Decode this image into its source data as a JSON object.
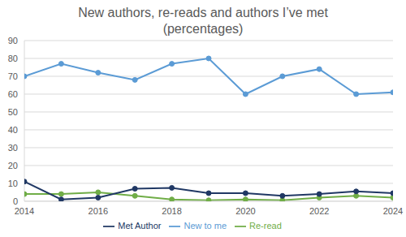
{
  "chart_data": {
    "type": "line",
    "title": "New authors, re-reads and authors I’ve met (percentages)",
    "x": [
      2014,
      2015,
      2016,
      2017,
      2018,
      2019,
      2020,
      2021,
      2022,
      2023,
      2024
    ],
    "series": [
      {
        "name": "New to me",
        "color": "#5b9bd5",
        "marker": "circle",
        "values": [
          70,
          77,
          72,
          68,
          77,
          80,
          60,
          70,
          74,
          60,
          61
        ]
      },
      {
        "name": "Re-read",
        "color": "#70ad47",
        "marker": "circle",
        "values": [
          4,
          4,
          5,
          3,
          1,
          0.5,
          1,
          0.5,
          2,
          3,
          2
        ]
      },
      {
        "name": "Met Author",
        "color": "#203864",
        "marker": "circle",
        "values": [
          11,
          1,
          2,
          7,
          7.5,
          4.5,
          4.5,
          3,
          4,
          5.5,
          4.5
        ]
      }
    ],
    "xlim": [
      2014,
      2024
    ],
    "xticks": [
      2014,
      2016,
      2018,
      2020,
      2022,
      2024
    ],
    "ylim": [
      0,
      90
    ],
    "yticks": [
      0,
      10,
      20,
      30,
      40,
      50,
      60,
      70,
      80,
      90
    ],
    "grid": true,
    "legend": "bottom"
  }
}
